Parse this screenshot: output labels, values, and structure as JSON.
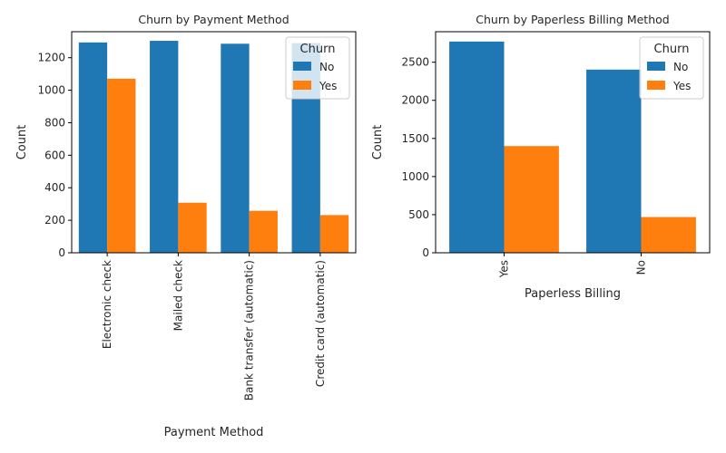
{
  "legend_title": "Churn",
  "chart_data": [
    {
      "type": "bar",
      "title": "Churn by Payment Method",
      "xlabel": "Payment Method",
      "ylabel": "Count",
      "ylim": [
        0,
        1360
      ],
      "yticks": [
        0,
        200,
        400,
        600,
        800,
        1000,
        1200
      ],
      "categories": [
        "Electronic check",
        "Mailed check",
        "Bank transfer (automatic)",
        "Credit card (automatic)"
      ],
      "series": [
        {
          "name": "No",
          "color": "#1f77b4",
          "values": [
            1294,
            1304,
            1286,
            1290
          ]
        },
        {
          "name": "Yes",
          "color": "#ff7f0e",
          "values": [
            1071,
            308,
            258,
            232
          ]
        }
      ],
      "legend_position": "top-right",
      "grid": false
    },
    {
      "type": "bar",
      "title": "Churn by Paperless Billing Method",
      "xlabel": "Paperless Billing",
      "ylabel": "Count",
      "ylim": [
        0,
        2900
      ],
      "yticks": [
        0,
        500,
        1000,
        1500,
        2000,
        2500
      ],
      "categories": [
        "Yes",
        "No"
      ],
      "series": [
        {
          "name": "No",
          "color": "#1f77b4",
          "values": [
            2771,
            2403
          ]
        },
        {
          "name": "Yes",
          "color": "#ff7f0e",
          "values": [
            1400,
            469
          ]
        }
      ],
      "legend_position": "top-right",
      "grid": false
    }
  ]
}
